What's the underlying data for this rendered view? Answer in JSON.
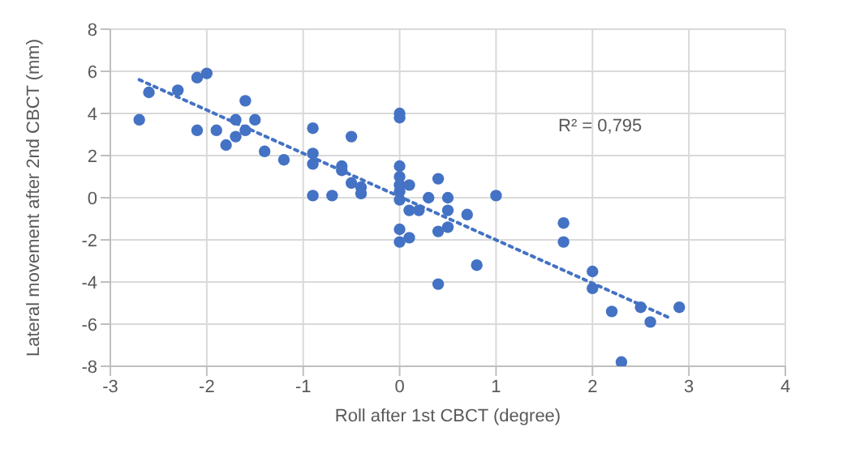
{
  "chart_data": {
    "type": "scatter",
    "xlabel": "Roll after 1st CBCT (degree)",
    "ylabel": "Lateral movement after 2nd CBCT (mm)",
    "xlim": [
      -3,
      4
    ],
    "xticks": [
      -3,
      -2,
      -1,
      0,
      1,
      2,
      3,
      4
    ],
    "ylim": [
      -8,
      8
    ],
    "yticks": [
      -8,
      -6,
      -4,
      -2,
      0,
      2,
      4,
      6,
      8
    ],
    "grid": true,
    "annotations": [
      "R² = 0,795"
    ],
    "series": [
      {
        "type": "scatter",
        "color": "#4472c4",
        "marker": "circle",
        "x": [
          -2.7,
          -2.6,
          -2.3,
          -2.1,
          -2.0,
          -2.1,
          -1.9,
          -1.8,
          -1.7,
          -1.7,
          -1.6,
          -1.6,
          -1.5,
          -1.4,
          -1.2,
          -0.9,
          -0.9,
          -0.9,
          -0.9,
          -0.7,
          -0.6,
          -0.6,
          -0.5,
          -0.5,
          -0.4,
          -0.4,
          0,
          0,
          0,
          0,
          0,
          0,
          0,
          0,
          0,
          0.1,
          0.1,
          0.2,
          0.3,
          0.5,
          0.5,
          0.7,
          0.4,
          0.5,
          0.1,
          0.8,
          0.4,
          0.4,
          1.0,
          1.7,
          1.7,
          2.0,
          2.0,
          2.2,
          2.5,
          2.6,
          2.9,
          2.3
        ],
        "values": [
          3.7,
          5.0,
          5.1,
          5.7,
          5.9,
          3.2,
          3.2,
          2.5,
          3.7,
          2.9,
          4.6,
          3.2,
          3.7,
          2.2,
          1.8,
          3.3,
          2.1,
          1.6,
          0.1,
          0.1,
          1.5,
          1.3,
          2.9,
          0.7,
          0.5,
          0.2,
          4.0,
          3.8,
          1.5,
          1.0,
          0.6,
          0.3,
          -1.5,
          -2.1,
          -0.1,
          0.6,
          -0.6,
          -0.6,
          0,
          0,
          -0.6,
          -0.8,
          -1.6,
          -1.4,
          -1.9,
          -3.2,
          -4.1,
          0.9,
          0.1,
          -1.2,
          -2.1,
          -3.5,
          -4.3,
          -5.4,
          -5.2,
          -5.9,
          -5.2,
          -7.8
        ]
      },
      {
        "type": "line",
        "color": "#4472c4",
        "line_style": "dotted",
        "marker": "none",
        "x": [
          -2.7,
          2.8
        ],
        "values": [
          5.6,
          -5.7
        ]
      }
    ]
  }
}
